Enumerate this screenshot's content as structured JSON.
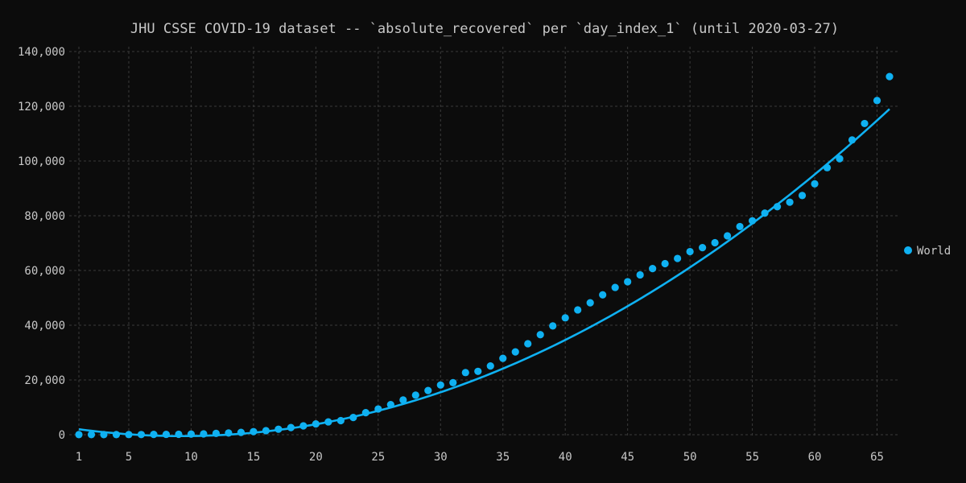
{
  "colors": {
    "background": "#0c0c0c",
    "grid": "#3a3a3a",
    "text": "#c8c8c8",
    "series": "#0fb1f2"
  },
  "chart_data": {
    "type": "scatter",
    "title": "JHU CSSE COVID-19 dataset -- `absolute_recovered` per `day_index_1` (until 2020-03-27)",
    "xlabel": "",
    "ylabel": "",
    "xlim": [
      1,
      66
    ],
    "ylim": [
      0,
      140000
    ],
    "grid": true,
    "legend": "right",
    "xticks": [
      1,
      5,
      10,
      15,
      20,
      25,
      30,
      35,
      40,
      45,
      50,
      55,
      60,
      65
    ],
    "xtick_labels": [
      "1",
      "5",
      "10",
      "15",
      "20",
      "25",
      "30",
      "35",
      "40",
      "45",
      "50",
      "55",
      "60",
      "65"
    ],
    "yticks": [
      0,
      20000,
      40000,
      60000,
      80000,
      100000,
      120000,
      140000
    ],
    "ytick_labels": [
      "0",
      "20,000",
      "40,000",
      "60,000",
      "80,000",
      "100,000",
      "120,000",
      "140,000"
    ],
    "series": [
      {
        "name": "World",
        "x": [
          1,
          2,
          3,
          4,
          5,
          6,
          7,
          8,
          9,
          10,
          11,
          12,
          13,
          14,
          15,
          16,
          17,
          18,
          19,
          20,
          21,
          22,
          23,
          24,
          25,
          26,
          27,
          28,
          29,
          30,
          31,
          32,
          33,
          34,
          35,
          36,
          37,
          38,
          39,
          40,
          41,
          42,
          43,
          44,
          45,
          46,
          47,
          48,
          49,
          50,
          51,
          52,
          53,
          54,
          55,
          56,
          57,
          58,
          59,
          60,
          61,
          62,
          63,
          64,
          65,
          66
        ],
        "y": [
          28,
          30,
          36,
          39,
          52,
          61,
          107,
          126,
          143,
          222,
          284,
          472,
          623,
          852,
          1124,
          1487,
          2011,
          2616,
          3244,
          3946,
          4683,
          5150,
          6295,
          8058,
          9395,
          11000,
          12700,
          14450,
          16150,
          18150,
          19000,
          22700,
          23150,
          25100,
          27900,
          30250,
          33250,
          36550,
          39750,
          42700,
          45600,
          48200,
          51100,
          53800,
          55900,
          58400,
          60700,
          62500,
          64400,
          66900,
          68350,
          70150,
          72650,
          76050,
          78150,
          80950,
          83300,
          84950,
          87400,
          91650,
          97550,
          100850,
          107700,
          113700,
          122100,
          130850
        ]
      },
      {
        "name": "",
        "type": "line",
        "fit": "quadratic",
        "x_start": 1,
        "x_end": 66,
        "y_at_start": 2000,
        "y_at_end": 119000,
        "min_x": 9,
        "min_y": -500
      }
    ],
    "legend_entries": [
      "World"
    ]
  }
}
